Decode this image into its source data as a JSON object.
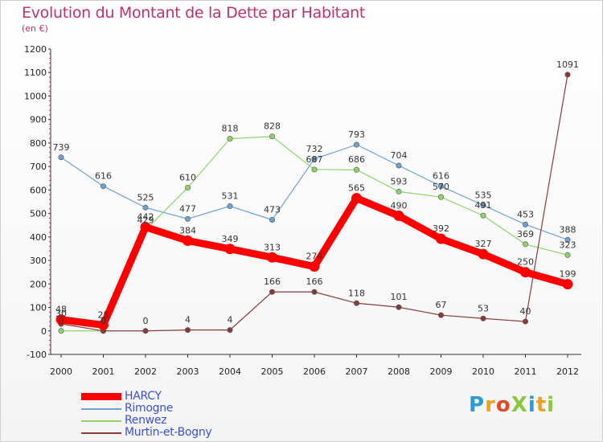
{
  "title": "Evolution du Montant de la Dette par Habitant",
  "subtitle": "(en €)",
  "logo": {
    "text": "ProXiti",
    "colors": [
      "#2b9ad6",
      "#f0a21d",
      "#e04c2a",
      "#8cc63f",
      "#2b9ad6",
      "#f0a21d",
      "#8cc63f"
    ]
  },
  "chart_data": {
    "type": "line",
    "x": [
      "2000",
      "2001",
      "2002",
      "2003",
      "2004",
      "2005",
      "2006",
      "2007",
      "2008",
      "2009",
      "2010",
      "2011",
      "2012"
    ],
    "ylim": [
      -100,
      1200
    ],
    "yticks": [
      "-100",
      "0",
      "100",
      "200",
      "300",
      "400",
      "500",
      "600",
      "700",
      "800",
      "900",
      "1000",
      "1100",
      "1200"
    ],
    "grid": false,
    "legend_position": "bottom-left",
    "series": [
      {
        "name": "HARCY",
        "color": "#ff0000",
        "width": 9,
        "values": [
          48,
          25,
          442,
          384,
          349,
          313,
          274,
          565,
          490,
          392,
          327,
          250,
          199
        ],
        "labels": [
          "48",
          "25",
          "442",
          "384",
          "349",
          "313",
          "274",
          "565",
          "490",
          "392",
          "327",
          "250",
          "199"
        ]
      },
      {
        "name": "Rimogne",
        "color": "#6fa1d4",
        "width": 1.2,
        "values": [
          739,
          616,
          525,
          477,
          531,
          473,
          732,
          793,
          704,
          616,
          535,
          453,
          388
        ],
        "labels": [
          "739",
          "616",
          "525",
          "477",
          "531",
          "473",
          "732",
          "793",
          "704",
          "616",
          "535",
          "453",
          "388"
        ]
      },
      {
        "name": "Renwez",
        "color": "#8fd46a",
        "width": 1.2,
        "values": [
          0,
          0,
          429,
          610,
          818,
          828,
          687,
          686,
          593,
          570,
          491,
          369,
          323
        ],
        "labels": [
          "0",
          "0",
          "429",
          "610",
          "818",
          "828",
          "687",
          "686",
          "593",
          "570",
          "491",
          "369",
          "323"
        ]
      },
      {
        "name": "Murtin-et-Bogny",
        "color": "#8a3a3a",
        "width": 1.2,
        "values": [
          30,
          0,
          0,
          4,
          4,
          166,
          166,
          118,
          101,
          67,
          53,
          40,
          1091
        ],
        "labels": [
          "30",
          "0",
          "0",
          "4",
          "4",
          "166",
          "166",
          "118",
          "101",
          "67",
          "53",
          "40",
          "1091"
        ]
      }
    ]
  }
}
